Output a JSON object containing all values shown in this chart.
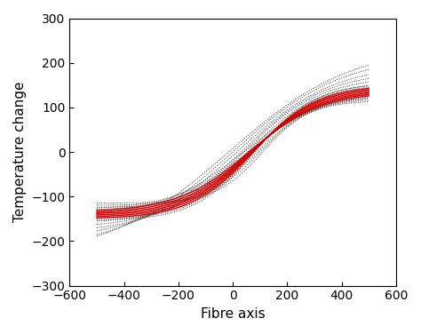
{
  "title": "",
  "xlabel": "Fibre axis",
  "ylabel": "Temperature change",
  "xlim": [
    -600,
    600
  ],
  "ylim": [
    -300,
    300
  ],
  "xticks": [
    -600,
    -400,
    -200,
    0,
    200,
    400,
    600
  ],
  "yticks": [
    -300,
    -200,
    -100,
    0,
    100,
    200,
    300
  ],
  "x_start": -500,
  "x_end": 500,
  "background_color": "#ffffff",
  "tick_fontsize": 10,
  "label_fontsize": 11,
  "red_color": "#cc0000",
  "black_color": "#1a1a1a",
  "red_linewidth": 1.1,
  "black_linewidth": 0.7,
  "red_curves": [
    {
      "amp": 135,
      "steep": 0.0038,
      "shift": 60
    },
    {
      "amp": 138,
      "steep": 0.0039,
      "shift": 65
    },
    {
      "amp": 141,
      "steep": 0.004,
      "shift": 68
    },
    {
      "amp": 144,
      "steep": 0.0041,
      "shift": 70
    },
    {
      "amp": 147,
      "steep": 0.0042,
      "shift": 72
    },
    {
      "amp": 150,
      "steep": 0.0043,
      "shift": 75
    }
  ],
  "black_curves": [
    {
      "amp": 130,
      "steep": 0.0037,
      "shift": 55
    },
    {
      "amp": 133,
      "steep": 0.0038,
      "shift": 60
    },
    {
      "amp": 152,
      "steep": 0.0044,
      "shift": 78
    },
    {
      "amp": 155,
      "steep": 0.0045,
      "shift": 80
    },
    {
      "amp": 145,
      "steep": 0.0033,
      "shift": 40
    },
    {
      "amp": 160,
      "steep": 0.0038,
      "shift": 55
    },
    {
      "amp": 170,
      "steep": 0.0035,
      "shift": 40
    },
    {
      "amp": 182,
      "steep": 0.0032,
      "shift": 30
    },
    {
      "amp": 198,
      "steep": 0.0028,
      "shift": 15
    },
    {
      "amp": 218,
      "steep": 0.0025,
      "shift": 0
    },
    {
      "amp": 240,
      "steep": 0.0022,
      "shift": -15
    },
    {
      "amp": 125,
      "steep": 0.0048,
      "shift": 90
    },
    {
      "amp": 120,
      "steep": 0.0052,
      "shift": 100
    },
    {
      "amp": 115,
      "steep": 0.0058,
      "shift": 110
    }
  ]
}
